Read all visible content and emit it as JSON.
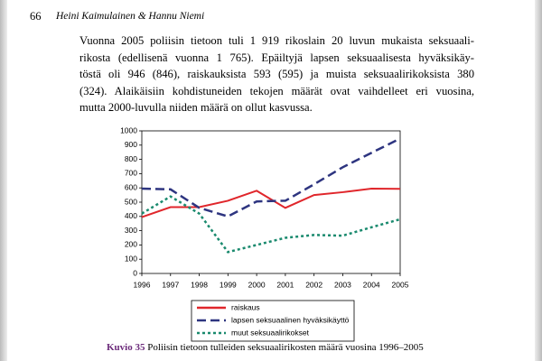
{
  "header": {
    "page_number": "66",
    "authors": "Heini Kaimulainen & Hannu Niemi"
  },
  "paragraph": {
    "lines": [
      "Vuonna 2005 poliisin tietoon tuli 1 919 rikoslain 20 luvun mukaista seksuaali-",
      "rikosta (edellisenä vuonna 1 765). Epäiltyjä lapsen seksuaalisesta hyväksikäy-",
      "töstä oli 946 (846), raiskauksista 593 (595) ja muista seksuaalirikoksista 380",
      "(324). Alaikäisiin kohdistuneiden tekojen määrät ovat vaihdelleet eri vuosina,",
      "mutta 2000-luvulla niiden määrä on ollut kasvussa."
    ]
  },
  "chart_data": {
    "type": "line",
    "categories": [
      "1996",
      "1997",
      "1998",
      "1999",
      "2000",
      "2001",
      "2002",
      "2003",
      "2004",
      "2005"
    ],
    "series": [
      {
        "name": "raiskaus",
        "color": "#e0262b",
        "dash": "solid",
        "values": [
          395,
          465,
          465,
          510,
          580,
          460,
          550,
          570,
          595,
          593
        ]
      },
      {
        "name": "lapsen seksuaalinen hyväksikäyttö",
        "color": "#2e3580",
        "dash": "dashed",
        "values": [
          595,
          590,
          460,
          400,
          505,
          510,
          625,
          745,
          846,
          946
        ]
      },
      {
        "name": "muut seksuaalirikokset",
        "color": "#1a8a6e",
        "dash": "dotted",
        "values": [
          420,
          540,
          420,
          150,
          200,
          250,
          270,
          265,
          324,
          380
        ]
      }
    ],
    "ylim": [
      0,
      1000
    ],
    "yticks": [
      0,
      100,
      200,
      300,
      400,
      500,
      600,
      700,
      800,
      900,
      1000
    ],
    "grid": false,
    "legend": "bottom"
  },
  "caption": {
    "label": "Kuvio 35",
    "text": "Poliisin tietoon tulleiden seksuaalirikosten määrä vuosina 1996–2005"
  }
}
